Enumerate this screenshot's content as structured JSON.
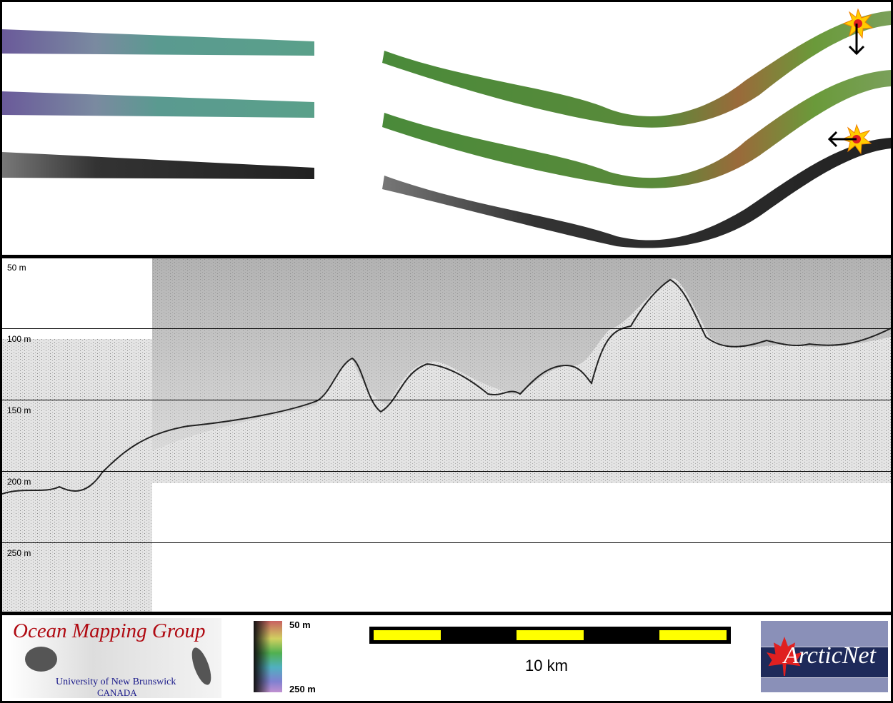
{
  "profile": {
    "depth_labels": [
      "50 m",
      "100 m",
      "150 m",
      "200 m",
      "250 m"
    ]
  },
  "legend": {
    "colorbar_top": "50 m",
    "colorbar_bottom": "250 m",
    "scale_label": "10 km",
    "scale_bar_colors": [
      "#ffff00",
      "#000000"
    ]
  },
  "logos": {
    "omg_title": "Ocean Mapping Group",
    "omg_sub1": "University of New Brunswick",
    "omg_sub2": "CANADA",
    "arcticnet": "ArcticNet"
  },
  "colors": {
    "omg_red": "#b00a12",
    "omg_blue": "#1a1a8a",
    "arcticnet_navy": "#1e2a5a",
    "marker": "#ffcc00"
  },
  "icons": [
    "explosion-marker-icon",
    "arrow-down-icon",
    "arrow-left-icon",
    "maple-leaf-icon"
  ]
}
